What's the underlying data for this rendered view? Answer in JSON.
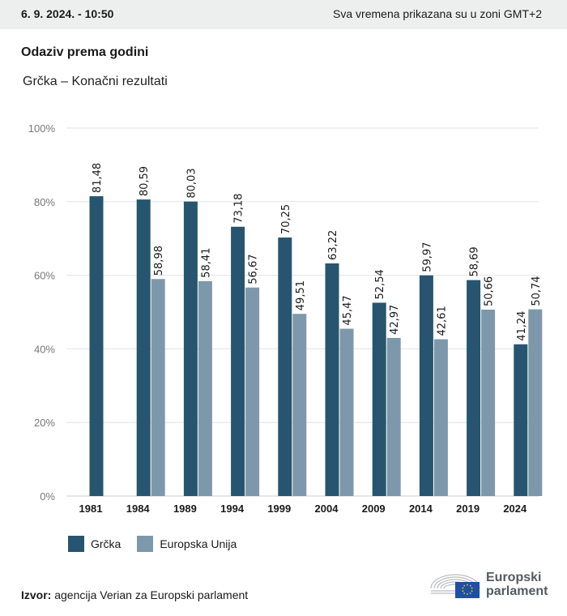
{
  "header": {
    "date": "6. 9. 2024. - 10:50",
    "timezone_note": "Sva vremena prikazana su u zoni GMT+2"
  },
  "title": "Odaziv prema godini",
  "subtitle": "Grčka – Konačni rezultati",
  "colors": {
    "greece": "#27556f",
    "eu": "#7d98aa",
    "grid": "#e2e2e2",
    "axis_text": "#777777"
  },
  "chart_data": {
    "type": "bar",
    "title": "Odaziv prema godini",
    "subtitle": "Grčka – Konačni rezultati",
    "xlabel": "",
    "ylabel": "",
    "ylim": [
      0,
      100
    ],
    "yticks": [
      "0%",
      "20%",
      "40%",
      "60%",
      "80%",
      "100%"
    ],
    "ytick_values": [
      0,
      20,
      40,
      60,
      80,
      100
    ],
    "grid": true,
    "legend_position": "bottom-left",
    "categories": [
      "1981",
      "1984",
      "1989",
      "1994",
      "1999",
      "2004",
      "2009",
      "2014",
      "2019",
      "2024"
    ],
    "series": [
      {
        "name": "Grčka",
        "values": [
          81.48,
          80.59,
          80.03,
          73.18,
          70.25,
          63.22,
          52.54,
          59.97,
          58.69,
          41.24
        ],
        "labels": [
          "81,48",
          "80,59",
          "80,03",
          "73,18",
          "70,25",
          "63,22",
          "52,54",
          "59,97",
          "58,69",
          "41,24"
        ]
      },
      {
        "name": "Europska Unija",
        "values": [
          null,
          58.98,
          58.41,
          56.67,
          49.51,
          45.47,
          42.97,
          42.61,
          50.66,
          50.74
        ],
        "labels": [
          null,
          "58,98",
          "58,41",
          "56,67",
          "49,51",
          "45,47",
          "42,97",
          "42,61",
          "50,66",
          "50,74"
        ]
      }
    ]
  },
  "legend": {
    "items": [
      "Grčka",
      "Europska Unija"
    ]
  },
  "footer": {
    "source_label": "Izvor:",
    "source_text": " agencija Verian za Europski parlament",
    "logo_line1": "Europski",
    "logo_line2": "parlament"
  }
}
